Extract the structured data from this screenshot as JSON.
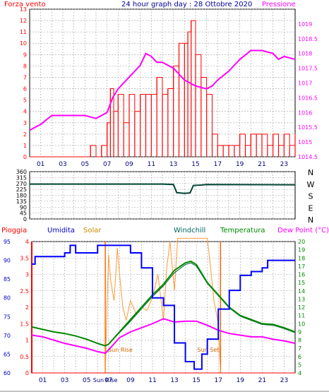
{
  "title": "24 hour graph day : 28 Ottobre 2020",
  "x_tick_labels": [
    "01",
    "03",
    "05",
    "07",
    "09",
    "11",
    "13",
    "15",
    "17",
    "19",
    "21",
    "23"
  ],
  "colors": {
    "wind": "#ff0000",
    "pressure": "#ff00ff",
    "humidity": "#0000ff",
    "solar": "#ff9933",
    "windchill": "#006633",
    "temperature": "#008800",
    "dewpoint": "#ff00ff",
    "rain": "#ff0000",
    "direction": "#004433",
    "grid": "#a0a0a0"
  },
  "chart_data": [
    {
      "type": "line",
      "title": "24 hour graph day : 28 Ottobre 2020",
      "x_range": [
        0,
        24
      ],
      "series": [
        {
          "name": "Forza vento",
          "ylim": [
            0,
            13
          ],
          "y_ticks": [
            0,
            1,
            2,
            3,
            4,
            5,
            6,
            7,
            8,
            9,
            10,
            11,
            12,
            13
          ],
          "values": [
            [
              0,
              0
            ],
            [
              0.5,
              0
            ],
            [
              1,
              0
            ],
            [
              2,
              0
            ],
            [
              3,
              0
            ],
            [
              3.5,
              0
            ],
            [
              4,
              0
            ],
            [
              4.5,
              0
            ],
            [
              5,
              0
            ],
            [
              5.5,
              1
            ],
            [
              6,
              0
            ],
            [
              6.5,
              1
            ],
            [
              7,
              3
            ],
            [
              7.3,
              6
            ],
            [
              7.6,
              4
            ],
            [
              8,
              5.5
            ],
            [
              8.5,
              3
            ],
            [
              9,
              5.5
            ],
            [
              9.5,
              4
            ],
            [
              10,
              5.5
            ],
            [
              10.5,
              5.5
            ],
            [
              11,
              5.5
            ],
            [
              11.5,
              7
            ],
            [
              12,
              5.5
            ],
            [
              12.5,
              6
            ],
            [
              13,
              8
            ],
            [
              13.5,
              10
            ],
            [
              14,
              10
            ],
            [
              14.3,
              11
            ],
            [
              14.6,
              12
            ],
            [
              15,
              9
            ],
            [
              15.5,
              7
            ],
            [
              16,
              5.5
            ],
            [
              16.5,
              2
            ],
            [
              17,
              1
            ],
            [
              17.5,
              1
            ],
            [
              18,
              1
            ],
            [
              18.5,
              1
            ],
            [
              19,
              2
            ],
            [
              19.5,
              1
            ],
            [
              20,
              2
            ],
            [
              20.5,
              2
            ],
            [
              21,
              2
            ],
            [
              21.5,
              1
            ],
            [
              22,
              2
            ],
            [
              22.5,
              1
            ],
            [
              23,
              2
            ],
            [
              23.5,
              1
            ],
            [
              24,
              2
            ]
          ]
        },
        {
          "name": "Pressione",
          "ylim": [
            1014.5,
            1019.5
          ],
          "y_ticks": [
            1014.5,
            1015,
            1015.5,
            1016,
            1016.5,
            1017,
            1017.5,
            1018,
            1018.5,
            1019
          ],
          "values": [
            [
              0,
              1015.4
            ],
            [
              1,
              1015.6
            ],
            [
              2,
              1015.9
            ],
            [
              3,
              1015.9
            ],
            [
              4,
              1015.9
            ],
            [
              5,
              1015.9
            ],
            [
              6,
              1015.8
            ],
            [
              7,
              1016
            ],
            [
              7.5,
              1016.5
            ],
            [
              8,
              1016.8
            ],
            [
              9,
              1017.2
            ],
            [
              10,
              1017.6
            ],
            [
              10.5,
              1018
            ],
            [
              11,
              1017.9
            ],
            [
              11.5,
              1017.7
            ],
            [
              12,
              1017.7
            ],
            [
              13,
              1017.5
            ],
            [
              14,
              1017.1
            ],
            [
              15,
              1016.9
            ],
            [
              16,
              1016.8
            ],
            [
              16.5,
              1016.9
            ],
            [
              17,
              1017.1
            ],
            [
              18,
              1017.4
            ],
            [
              19,
              1017.8
            ],
            [
              20,
              1018.1
            ],
            [
              21,
              1018.1
            ],
            [
              22,
              1018
            ],
            [
              22.5,
              1017.8
            ],
            [
              23,
              1017.9
            ],
            [
              24,
              1017.8
            ]
          ]
        }
      ]
    },
    {
      "type": "line",
      "x_range": [
        0,
        24
      ],
      "ylim": [
        0,
        360
      ],
      "y_ticks": [
        0,
        45,
        90,
        135,
        180,
        225,
        270,
        315,
        360
      ],
      "right_labels": [
        "N",
        "W",
        "S",
        "E",
        "N"
      ],
      "series": [
        {
          "values": [
            [
              0,
              265
            ],
            [
              12,
              265
            ],
            [
              13,
              262
            ],
            [
              13.3,
              200
            ],
            [
              14,
              195
            ],
            [
              14.5,
              198
            ],
            [
              14.8,
              255
            ],
            [
              15.5,
              258
            ],
            [
              16,
              262
            ],
            [
              24,
              260
            ]
          ]
        }
      ]
    },
    {
      "type": "line",
      "x_range": [
        0,
        24
      ],
      "left_ylim": [
        60,
        95
      ],
      "left_ticks": [
        60,
        65,
        70,
        75,
        80,
        85,
        90,
        95
      ],
      "right_ylim": [
        4,
        20
      ],
      "right_ticks": [
        4,
        5,
        6,
        7,
        8,
        9,
        10,
        11,
        12,
        13,
        14,
        15,
        16,
        17,
        18,
        19,
        20
      ],
      "rain_ticks": [
        0,
        0.5,
        1,
        1.5,
        2,
        2.5,
        3,
        3.5,
        4
      ],
      "legend": [
        "Pioggia",
        "Umidita",
        "Solar",
        "Windchill",
        "Temperatura",
        "Dew Point (°C)"
      ],
      "annotations": {
        "sunrise": "Sun Rise",
        "sunset": "Sun Set",
        "x_sunrise_label": "Sun Rise"
      },
      "markers": {
        "sunrise_hour": 6.7,
        "sunset_hour": 17.2
      },
      "series": [
        {
          "name": "Umidita",
          "axis": "left",
          "values": [
            [
              0,
              89
            ],
            [
              0.3,
              91
            ],
            [
              1,
              91
            ],
            [
              2,
              91
            ],
            [
              3,
              92
            ],
            [
              3.5,
              94
            ],
            [
              4,
              92
            ],
            [
              5,
              92
            ],
            [
              6,
              94
            ],
            [
              6.7,
              94
            ],
            [
              7,
              94
            ],
            [
              8,
              94
            ],
            [
              9,
              92
            ],
            [
              10,
              88
            ],
            [
              11,
              80
            ],
            [
              12,
              78
            ],
            [
              13,
              68
            ],
            [
              14,
              63
            ],
            [
              14.8,
              61
            ],
            [
              15.5,
              65
            ],
            [
              16,
              69
            ],
            [
              17,
              77
            ],
            [
              18,
              82
            ],
            [
              19,
              86
            ],
            [
              20,
              87
            ],
            [
              21,
              88
            ],
            [
              21.5,
              90
            ],
            [
              22,
              90
            ],
            [
              23,
              90
            ],
            [
              24,
              90
            ]
          ]
        },
        {
          "name": "Temperatura",
          "axis": "right",
          "values": [
            [
              0,
              9.6
            ],
            [
              1,
              9.3
            ],
            [
              2,
              9.0
            ],
            [
              3,
              8.8
            ],
            [
              4,
              8.5
            ],
            [
              5,
              8.1
            ],
            [
              6,
              7.6
            ],
            [
              6.7,
              7.3
            ],
            [
              7,
              7.5
            ],
            [
              8,
              9.0
            ],
            [
              9,
              10.5
            ],
            [
              10,
              12.0
            ],
            [
              11,
              13.5
            ],
            [
              12,
              14.8
            ],
            [
              13,
              16.5
            ],
            [
              14,
              17.4
            ],
            [
              14.5,
              17.6
            ],
            [
              15,
              17.2
            ],
            [
              16,
              15.0
            ],
            [
              17,
              13.5
            ],
            [
              18,
              12.0
            ],
            [
              19,
              11.0
            ],
            [
              20,
              10.5
            ],
            [
              21,
              10.0
            ],
            [
              22,
              9.9
            ],
            [
              23,
              9.5
            ],
            [
              24,
              9.0
            ]
          ]
        },
        {
          "name": "Windchill",
          "axis": "right",
          "values": [
            [
              0,
              9.6
            ],
            [
              1,
              9.3
            ],
            [
              2,
              9.0
            ],
            [
              3,
              8.8
            ],
            [
              4,
              8.5
            ],
            [
              5,
              8.1
            ],
            [
              6,
              7.6
            ],
            [
              6.7,
              7.3
            ],
            [
              7,
              7.5
            ],
            [
              8,
              8.9
            ],
            [
              9,
              10.3
            ],
            [
              10,
              11.8
            ],
            [
              11,
              13.3
            ],
            [
              12,
              14.6
            ],
            [
              13,
              16.2
            ],
            [
              14,
              17.2
            ],
            [
              14.5,
              17.4
            ],
            [
              15,
              17.0
            ],
            [
              16,
              14.9
            ],
            [
              17,
              13.4
            ],
            [
              18,
              11.9
            ],
            [
              19,
              10.9
            ],
            [
              20,
              10.4
            ],
            [
              21,
              9.9
            ],
            [
              22,
              9.8
            ],
            [
              23,
              9.4
            ],
            [
              24,
              8.9
            ]
          ]
        },
        {
          "name": "Dew Point",
          "axis": "right",
          "values": [
            [
              0,
              8.6
            ],
            [
              1,
              8.4
            ],
            [
              2,
              8.0
            ],
            [
              3,
              7.6
            ],
            [
              4,
              7.3
            ],
            [
              5,
              7.0
            ],
            [
              6,
              6.6
            ],
            [
              6.7,
              6.4
            ],
            [
              7,
              6.8
            ],
            [
              8,
              8.3
            ],
            [
              9,
              9.0
            ],
            [
              10,
              9.5
            ],
            [
              11,
              10.0
            ],
            [
              12,
              10.6
            ],
            [
              13,
              10.2
            ],
            [
              14,
              10.3
            ],
            [
              15,
              10.3
            ],
            [
              16,
              9.8
            ],
            [
              17,
              9.2
            ],
            [
              18,
              8.8
            ],
            [
              19,
              8.6
            ],
            [
              20,
              8.4
            ],
            [
              21,
              8.4
            ],
            [
              22,
              8.1
            ],
            [
              23,
              7.9
            ],
            [
              24,
              7.6
            ]
          ]
        },
        {
          "name": "Solar",
          "axis": "rain",
          "values": [
            [
              6.7,
              0
            ],
            [
              7,
              3.6
            ],
            [
              7.2,
              2.8
            ],
            [
              7.5,
              2.2
            ],
            [
              7.8,
              3.8
            ],
            [
              8,
              3
            ],
            [
              8.3,
              2
            ],
            [
              8.6,
              1.6
            ],
            [
              9,
              2.2
            ],
            [
              9.5,
              1.8
            ],
            [
              10,
              2
            ],
            [
              10.5,
              1.9
            ],
            [
              11,
              2.3
            ],
            [
              11.5,
              3
            ],
            [
              12,
              1.6
            ],
            [
              12.3,
              3.2
            ],
            [
              12.6,
              4
            ],
            [
              13,
              2.5
            ],
            [
              13.3,
              4.1
            ],
            [
              13.6,
              4.1
            ],
            [
              14,
              4.1
            ],
            [
              14.5,
              4.1
            ],
            [
              15,
              4.1
            ],
            [
              15.5,
              4.1
            ],
            [
              16,
              4.1
            ],
            [
              16.3,
              3.2
            ],
            [
              16.6,
              2.2
            ],
            [
              17,
              1.5
            ],
            [
              17.2,
              0
            ]
          ]
        },
        {
          "name": "Pioggia",
          "axis": "rain",
          "values": [
            [
              0,
              0
            ],
            [
              24,
              0
            ]
          ]
        }
      ]
    }
  ]
}
